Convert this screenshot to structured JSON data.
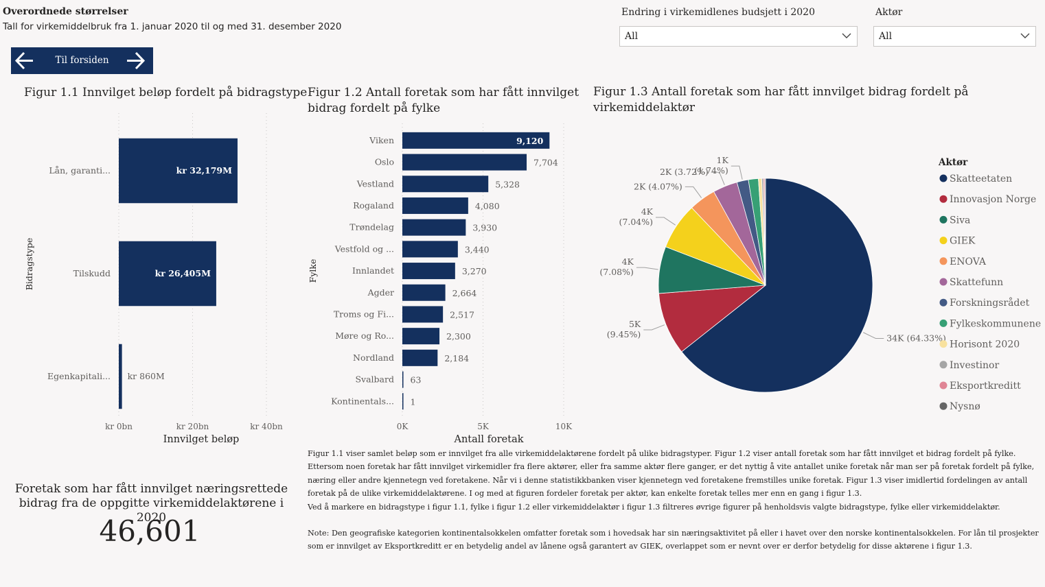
{
  "header": {
    "title": "Overordnede størrelser",
    "subtitle": "Tall for virkemiddelbruk fra 1. januar 2020 til og med 31. desember 2020"
  },
  "slicers": [
    {
      "label": "Endring i virkemidlenes budsjett i 2020",
      "value": "All"
    },
    {
      "label": "Aktør",
      "value": "All"
    }
  ],
  "nav": {
    "label": "Til forsiden"
  },
  "colors": {
    "accent": "#14305e",
    "background": "#f8f6f6"
  },
  "kpi": {
    "title": "Foretak som har fått innvilget næringsrettede bidrag fra de oppgitte virkemiddelaktørene i 2020",
    "value": "46,601"
  },
  "description": {
    "para1": "Figur 1.1 viser samlet beløp som er innvilget fra alle virkemiddelaktørene fordelt på ulike bidragstyper. Figur 1.2 viser antall foretak som har fått innvilget et bidrag fordelt på fylke. Ettersom noen foretak har fått innvilget virkemidler fra flere aktører, eller fra samme aktør flere ganger, er det nyttig å vite antallet unike foretak når man ser på foretak fordelt på fylke, næring eller andre kjennetegn ved foretakene. Når vi i denne statistikkbanken viser kjennetegn ved foretakene fremstilles unike foretak. Figur 1.3 viser imidlertid fordelingen av antall foretak på de ulike virkemiddelaktørene. I og med at figuren fordeler foretak per aktør, kan enkelte foretak telles mer enn en gang i figur 1.3.",
    "para2": "Ved å markere en bidragstype i figur 1.1, fylke i figur 1.2 eller virkemiddelaktør i figur 1.3 filtreres øvrige figurer på henholdsvis valgte bidragstype, fylke eller virkemiddelaktør.",
    "para3": "Note: Den geografiske kategorien kontinentalsokkelen omfatter foretak som i hovedsak har sin næringsaktivitet på eller i havet over den norske kontinentalsokkelen. For lån til prosjekter som er innvilget av Eksportkreditt er en betydelig andel av lånene også garantert av GIEK, overlappet som er nevnt over er derfor betydelig for disse aktørene i figur 1.3."
  },
  "chart_data": [
    {
      "type": "bar",
      "orientation": "horizontal",
      "title": "Figur 1.1 Innvilget beløp fordelt på bidragstype",
      "xlabel": "Innvilget beløp",
      "ylabel": "Bidragstype",
      "categories": [
        "Lån, garanti...",
        "Tilskudd",
        "Egenkapitali..."
      ],
      "values": [
        32179,
        26405,
        860
      ],
      "data_labels": [
        "kr 32,179M",
        "kr 26,405M",
        "kr 860M"
      ],
      "xticks": [
        {
          "value": 0,
          "label": "kr 0bn"
        },
        {
          "value": 20000,
          "label": "kr 20bn"
        },
        {
          "value": 40000,
          "label": "kr 40bn"
        }
      ],
      "xlim": [
        0,
        40000
      ],
      "color": "#14305e",
      "grid": true
    },
    {
      "type": "bar",
      "orientation": "horizontal",
      "title": "Figur 1.2 Antall foretak som har fått innvilget bidrag fordelt på fylke",
      "xlabel": "Antall foretak",
      "ylabel": "Fylke",
      "categories": [
        "Viken",
        "Oslo",
        "Vestland",
        "Rogaland",
        "Trøndelag",
        "Vestfold og ...",
        "Innlandet",
        "Agder",
        "Troms og Fi...",
        "Møre og Ro...",
        "Nordland",
        "Svalbard",
        "Kontinentals..."
      ],
      "values": [
        9120,
        7704,
        5328,
        4080,
        3930,
        3440,
        3270,
        2664,
        2517,
        2300,
        2184,
        63,
        1
      ],
      "data_labels": [
        "9,120",
        "7,704",
        "5,328",
        "4,080",
        "3,930",
        "3,440",
        "3,270",
        "2,664",
        "2,517",
        "2,300",
        "2,184",
        "63",
        "1"
      ],
      "xticks": [
        {
          "value": 0,
          "label": "0K"
        },
        {
          "value": 5000,
          "label": "5K"
        },
        {
          "value": 10000,
          "label": "10K"
        }
      ],
      "xlim": [
        0,
        10000
      ],
      "color": "#14305e",
      "grid": true
    },
    {
      "type": "pie",
      "title": "Figur 1.3 Antall foretak som har fått innvilget bidrag fordelt på virkemiddelaktør",
      "legend_title": "Aktør",
      "legend_position": "right",
      "slices": [
        {
          "name": "Skatteetaten",
          "percent": 64.33,
          "label": "34K (64.33%)",
          "color": "#14305e"
        },
        {
          "name": "Innovasjon Norge",
          "percent": 9.45,
          "label": "5K (9.45%)",
          "color": "#b22c3e"
        },
        {
          "name": "Siva",
          "percent": 7.08,
          "label": "4K (7.08%)",
          "color": "#1f7560"
        },
        {
          "name": "GIEK",
          "percent": 7.04,
          "label": "4K (7.04%)",
          "color": "#f4d11c"
        },
        {
          "name": "ENOVA",
          "percent": 4.07,
          "label": "2K (4.07%)",
          "color": "#f4955c"
        },
        {
          "name": "Skattefunn",
          "percent": 3.72,
          "label": "2K (3.72%)",
          "color": "#a3679a"
        },
        {
          "name": "Forskningsrådet",
          "percent": 1.74,
          "label": "1K (1.74%)",
          "color": "#435a85"
        },
        {
          "name": "Fylkeskommunene",
          "percent": 1.5,
          "label": "",
          "color": "#37a075"
        },
        {
          "name": "Horisont 2020",
          "percent": 0.5,
          "label": "",
          "color": "#f8e19e"
        },
        {
          "name": "Investinor",
          "percent": 0.25,
          "label": "",
          "color": "#a5a5a5"
        },
        {
          "name": "Eksportkreditt",
          "percent": 0.2,
          "label": "",
          "color": "#e08595"
        },
        {
          "name": "Nysnø",
          "percent": 0.12,
          "label": "",
          "color": "#666666"
        }
      ]
    }
  ]
}
